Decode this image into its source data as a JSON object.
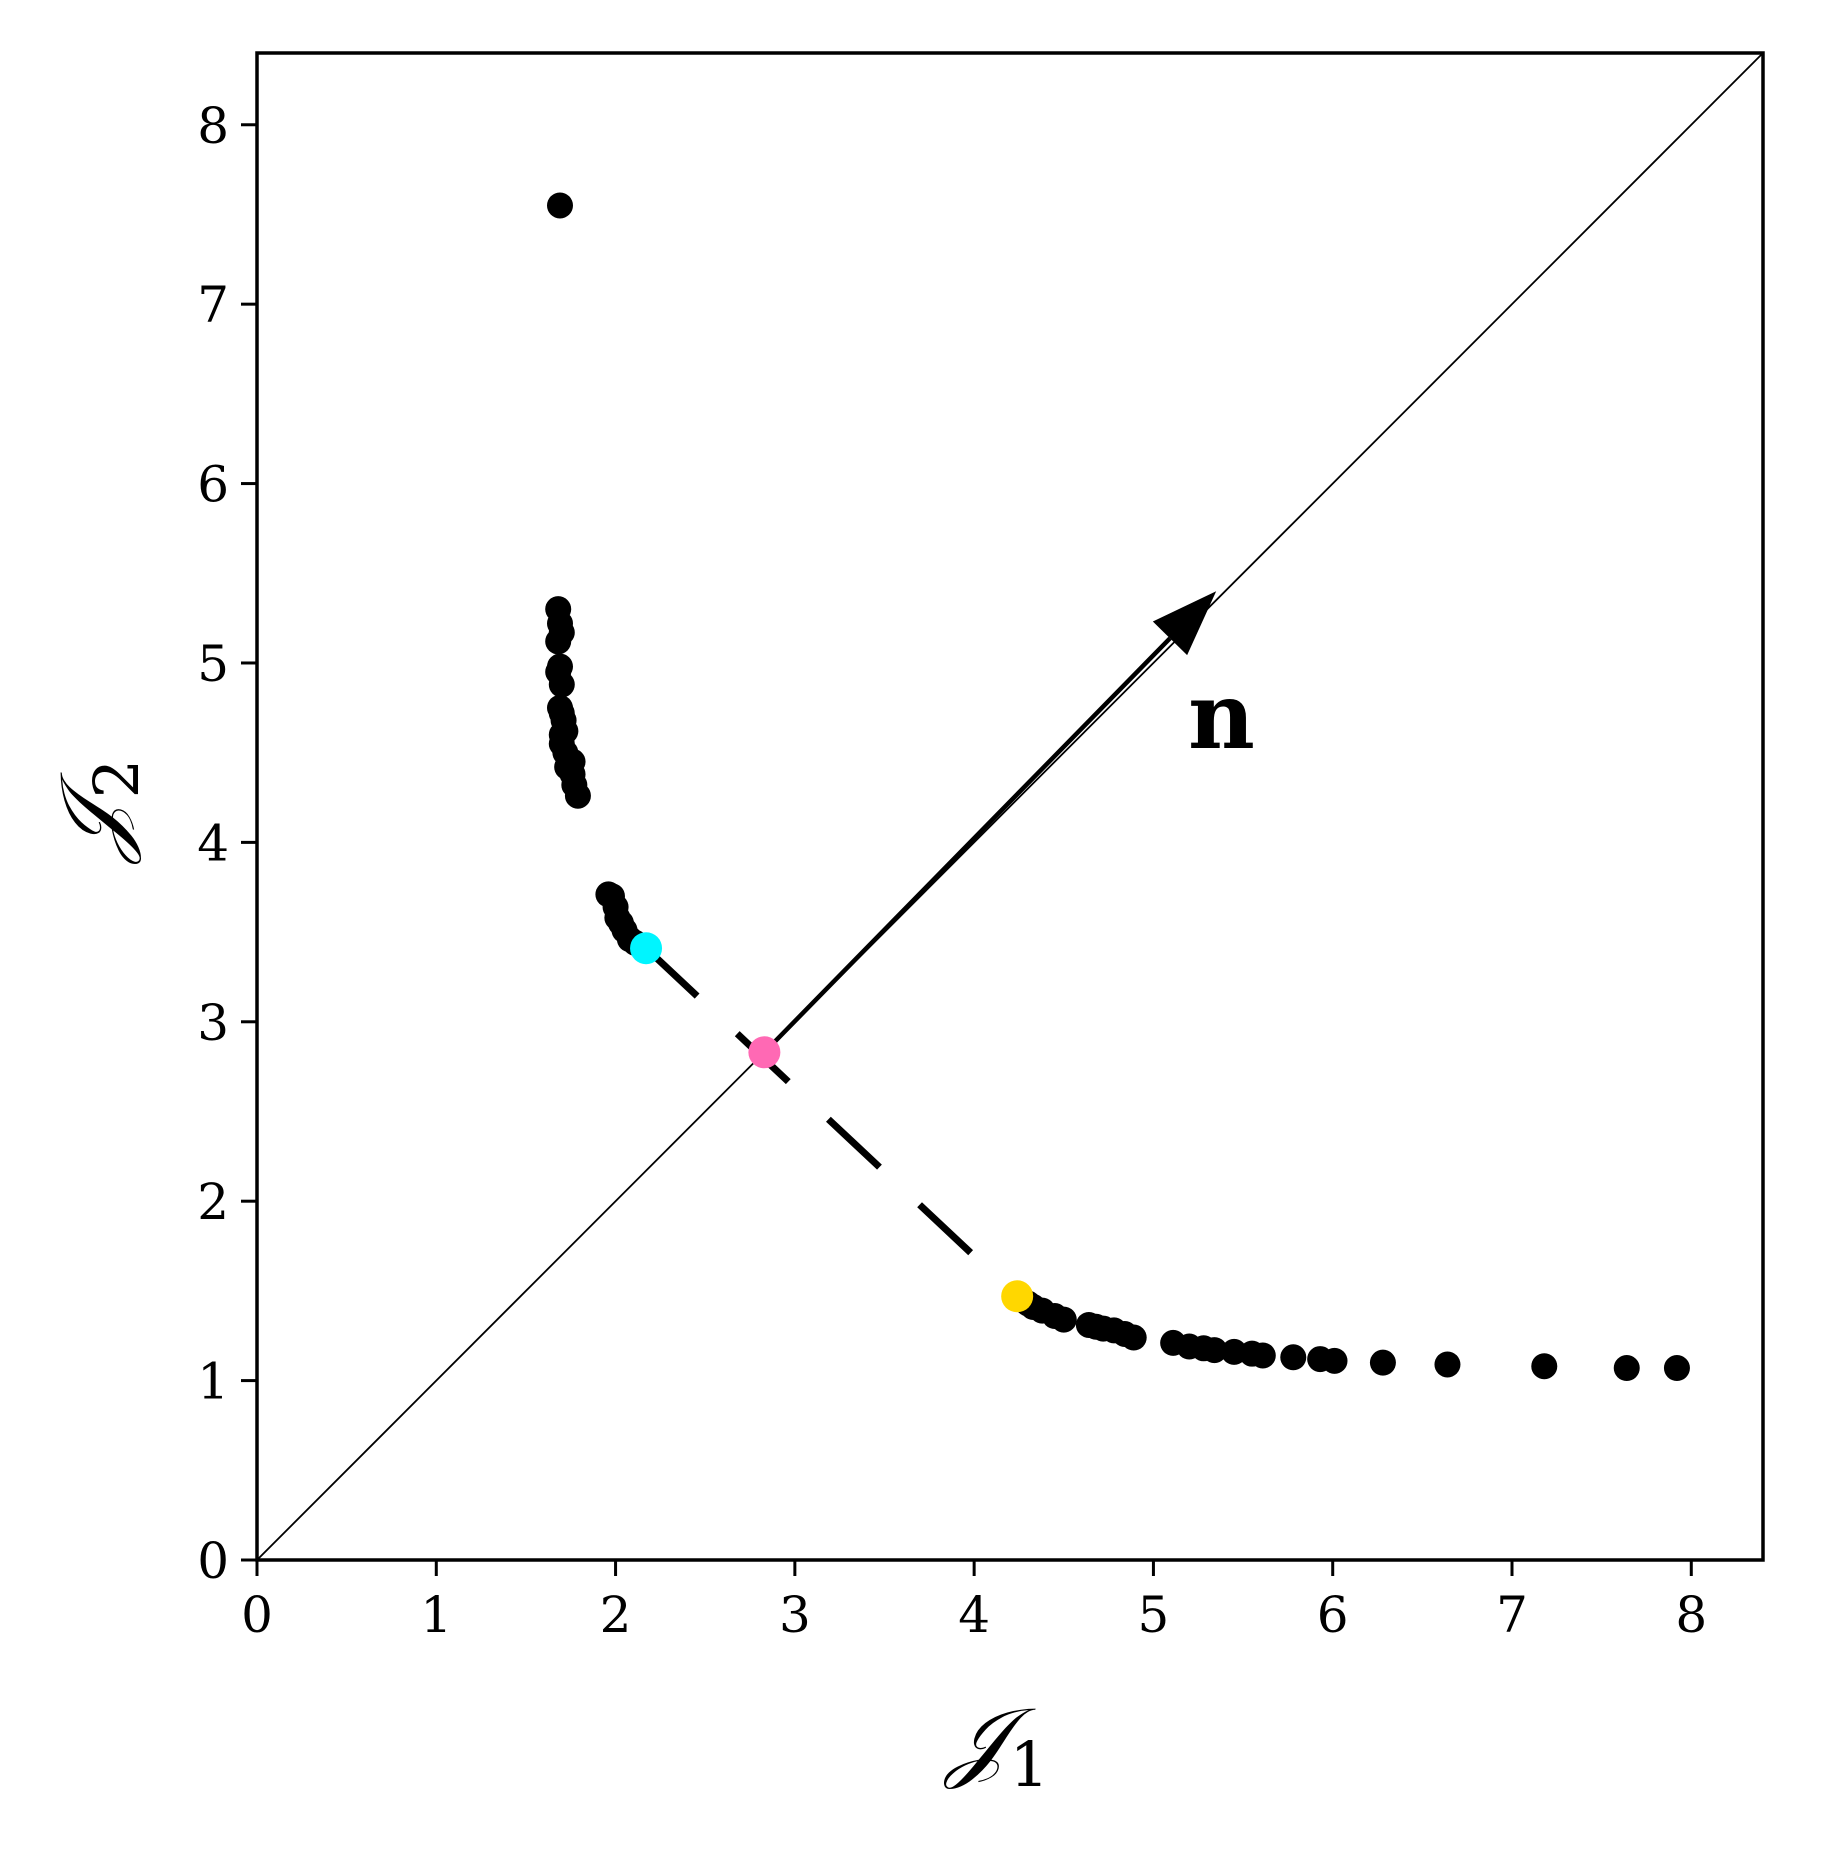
{
  "chart_data": {
    "type": "scatter",
    "title": "",
    "xlabel": "𝒥",
    "xlabel_sub": "1",
    "ylabel": "𝒥",
    "ylabel_sub": "2",
    "xlim": [
      0,
      8.4
    ],
    "ylim": [
      0,
      8.4
    ],
    "xticks": [
      "0",
      "1",
      "2",
      "3",
      "4",
      "5",
      "6",
      "7",
      "8"
    ],
    "yticks": [
      "0",
      "1",
      "2",
      "3",
      "4",
      "5",
      "6",
      "7",
      "8"
    ],
    "grid": false,
    "legend": "none",
    "annotation_text": "n",
    "colors": {
      "points": "#000000",
      "cyan": "#00f5ff",
      "pink": "#ff69b4",
      "yellow": "#ffd700",
      "lines": "#000000"
    },
    "diagonal": {
      "from": [
        0,
        0
      ],
      "to": [
        8.4,
        8.4
      ]
    },
    "arrow": {
      "from": [
        2.83,
        2.83
      ],
      "to": [
        5.35,
        5.4
      ]
    },
    "dashed_segment": {
      "from": [
        2.17,
        3.41
      ],
      "to": [
        4.24,
        1.47
      ]
    },
    "highlight_points": [
      {
        "name": "cyan",
        "x": 2.17,
        "y": 3.41
      },
      {
        "name": "pink",
        "x": 2.83,
        "y": 2.83
      },
      {
        "name": "yellow",
        "x": 4.24,
        "y": 1.47
      }
    ],
    "points": [
      [
        1.69,
        7.55
      ],
      [
        1.68,
        5.3
      ],
      [
        1.69,
        5.22
      ],
      [
        1.7,
        5.17
      ],
      [
        1.68,
        5.12
      ],
      [
        1.69,
        4.98
      ],
      [
        1.68,
        4.95
      ],
      [
        1.7,
        4.88
      ],
      [
        1.69,
        4.75
      ],
      [
        1.7,
        4.72
      ],
      [
        1.71,
        4.68
      ],
      [
        1.72,
        4.62
      ],
      [
        1.7,
        4.6
      ],
      [
        1.7,
        4.55
      ],
      [
        1.72,
        4.5
      ],
      [
        1.74,
        4.46
      ],
      [
        1.76,
        4.45
      ],
      [
        1.73,
        4.42
      ],
      [
        1.76,
        4.38
      ],
      [
        1.77,
        4.32
      ],
      [
        1.79,
        4.26
      ],
      [
        1.96,
        3.71
      ],
      [
        1.98,
        3.7
      ],
      [
        2.0,
        3.64
      ],
      [
        2.01,
        3.58
      ],
      [
        2.03,
        3.55
      ],
      [
        2.05,
        3.51
      ],
      [
        2.08,
        3.46
      ],
      [
        2.11,
        3.44
      ],
      [
        4.3,
        1.43
      ],
      [
        4.33,
        1.41
      ],
      [
        4.38,
        1.39
      ],
      [
        4.45,
        1.36
      ],
      [
        4.5,
        1.34
      ],
      [
        4.64,
        1.31
      ],
      [
        4.68,
        1.3
      ],
      [
        4.72,
        1.29
      ],
      [
        4.78,
        1.28
      ],
      [
        4.84,
        1.26
      ],
      [
        4.89,
        1.24
      ],
      [
        5.11,
        1.21
      ],
      [
        5.2,
        1.19
      ],
      [
        5.28,
        1.18
      ],
      [
        5.34,
        1.17
      ],
      [
        5.45,
        1.16
      ],
      [
        5.55,
        1.15
      ],
      [
        5.61,
        1.14
      ],
      [
        5.78,
        1.13
      ],
      [
        5.93,
        1.12
      ],
      [
        6.01,
        1.11
      ],
      [
        6.28,
        1.1
      ],
      [
        6.64,
        1.09
      ],
      [
        7.18,
        1.08
      ],
      [
        7.64,
        1.07
      ],
      [
        7.92,
        1.07
      ]
    ]
  }
}
